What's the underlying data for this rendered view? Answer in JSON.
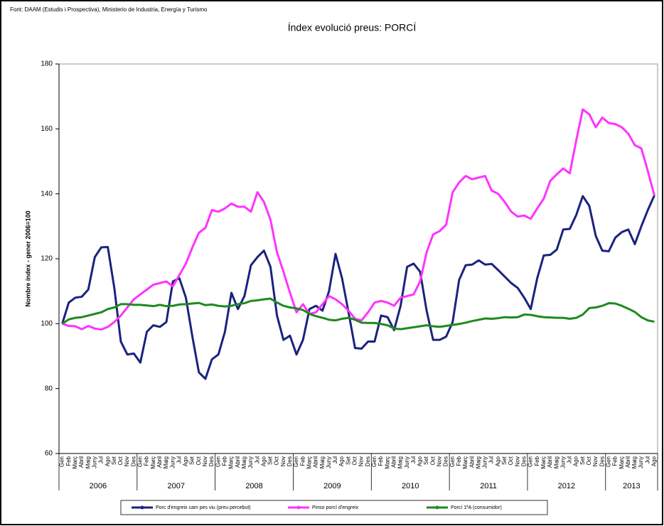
{
  "chart_data": {
    "type": "line",
    "source": "Font: DAAM (Estudis i Prospectiva), Ministerio de Industria, Energía y Turismo",
    "title": "Índex evolució preus: PORCÍ",
    "y_label": "Nombre índex - gener 2006=100",
    "categories": [
      "Gen",
      "Feb",
      "Març",
      "Abril",
      "Maig",
      "Juny",
      "Jul",
      "Ago",
      "Set",
      "Oct",
      "Nov",
      "Des",
      "Gen",
      "Feb",
      "Març",
      "Abril",
      "Maig",
      "Juny",
      "Jul",
      "Ago",
      "Set",
      "Oct",
      "Nov",
      "Des",
      "Gen",
      "Feb",
      "Març",
      "Abril",
      "Maig",
      "Juny",
      "Jul",
      "Ago",
      "Set",
      "Oct",
      "Nov",
      "Des",
      "Gen",
      "Feb",
      "Març",
      "Abril",
      "Maig",
      "Juny",
      "Jul",
      "Ago",
      "Set",
      "Oct",
      "Nov",
      "Des",
      "Gen",
      "Feb",
      "Març",
      "Abril",
      "Maig",
      "Juny",
      "Jul",
      "Ago",
      "Set",
      "Oct",
      "Nov",
      "Des",
      "Gen",
      "Feb",
      "Març",
      "Abril",
      "Maig",
      "Juny",
      "Jul",
      "Ago",
      "Set",
      "Oct",
      "Nov",
      "Des",
      "Gen",
      "Feb",
      "Març",
      "Abril",
      "Maig",
      "Juny",
      "Jul",
      "Ago",
      "Set",
      "Oct",
      "Nov",
      "Des",
      "Gen",
      "Feb",
      "Març",
      "Abril",
      "Maig",
      "Juny",
      "Jul",
      "Ago"
    ],
    "year_groups": [
      "2006",
      "2007",
      "2008",
      "2009",
      "2010",
      "2011",
      "2012",
      "2013"
    ],
    "series": [
      {
        "name": "Porc d'engreix cam pes viu (preu percebut)",
        "color": "#1a237e",
        "values": [
          100,
          106.5,
          108,
          108.3,
          110.5,
          120.5,
          123.5,
          123.6,
          111,
          94.5,
          90.5,
          90.8,
          88,
          97.5,
          99.5,
          99,
          100.5,
          113,
          114,
          108,
          96,
          85,
          83,
          89,
          90.5,
          97.5,
          109.5,
          104.5,
          108.5,
          118,
          120.5,
          122.5,
          117.5,
          102.5,
          95,
          96.3,
          90.5,
          95,
          104.5,
          105.5,
          104,
          110,
          121.5,
          114,
          103.5,
          92.5,
          92.3,
          94.5,
          94.5,
          102.5,
          102,
          98,
          105.5,
          117.5,
          118.5,
          116,
          104,
          95,
          95,
          96,
          100.5,
          113.5,
          118,
          118.2,
          119.5,
          118.2,
          118.4,
          116.5,
          114.5,
          112.5,
          111,
          108,
          104.5,
          114,
          121,
          121.2,
          122.8,
          129,
          129.2,
          133.5,
          139.3,
          136.3,
          127,
          122.5,
          122.3,
          126.5,
          128.2,
          129,
          124.5,
          130,
          135,
          139.5
        ]
      },
      {
        "name": "Pinso porcí d'engreix",
        "color": "#ff33ff",
        "values": [
          100,
          99.3,
          99.2,
          98.3,
          99.3,
          98.5,
          98.2,
          99,
          100.5,
          102.5,
          105,
          107.5,
          109,
          110.5,
          112,
          112.5,
          113,
          111.5,
          115,
          118.5,
          123.5,
          128,
          129.5,
          135,
          134.5,
          135.5,
          137,
          136,
          136,
          134.5,
          140.5,
          137.5,
          132,
          122,
          116,
          109.5,
          103.5,
          106,
          103,
          103.5,
          106,
          108.5,
          107.5,
          106,
          104,
          101.5,
          101,
          103.5,
          106.5,
          107,
          106.5,
          105.5,
          108,
          108.5,
          109,
          113,
          122,
          127.5,
          128.5,
          130.5,
          140.5,
          143.5,
          145.5,
          144.5,
          145,
          145.5,
          141,
          140,
          137.5,
          134.5,
          133,
          133.3,
          132.3,
          135.5,
          138.5,
          144,
          146,
          147.8,
          146.3,
          156.5,
          166,
          164.5,
          160.5,
          163.5,
          161.8,
          161.5,
          160.5,
          158.5,
          155,
          154,
          147,
          139.5
        ]
      },
      {
        "name": "Porcí 1ªA (consumidor)",
        "color": "#1e8a1e",
        "values": [
          100,
          101.3,
          101.8,
          102,
          102.5,
          103,
          103.5,
          104.5,
          105,
          106,
          106,
          105.8,
          105.8,
          105.6,
          105.4,
          105.8,
          105.4,
          105.5,
          105.9,
          106,
          106.2,
          106.4,
          105.7,
          105.9,
          105.5,
          105.3,
          105.5,
          106,
          106.3,
          107,
          107.2,
          107.5,
          107.7,
          106.5,
          105.5,
          105,
          104.7,
          104.2,
          103,
          102.3,
          101.8,
          101.2,
          101,
          101.5,
          101.8,
          101.2,
          100.3,
          100.2,
          100.2,
          99.9,
          99.5,
          98.5,
          98.3,
          98.6,
          98.9,
          99.2,
          99.5,
          99.2,
          99,
          99.3,
          99.6,
          99.9,
          100.3,
          100.8,
          101.2,
          101.6,
          101.5,
          101.7,
          102,
          101.9,
          102,
          102.8,
          102.7,
          102.3,
          102,
          101.9,
          101.8,
          101.8,
          101.5,
          101.8,
          102.8,
          104.8,
          105,
          105.5,
          106.3,
          106.2,
          105.5,
          104.6,
          103.6,
          102,
          101,
          100.6
        ]
      }
    ],
    "ylim": [
      60,
      180
    ],
    "yticks": [
      60,
      80,
      100,
      120,
      140,
      160,
      180
    ],
    "grid": false,
    "legend": "bottom"
  }
}
